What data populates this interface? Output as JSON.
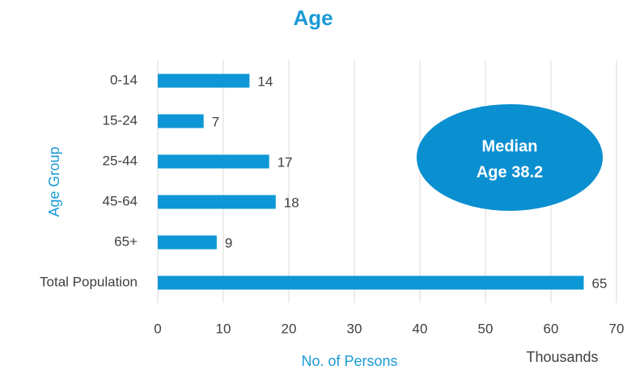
{
  "chart_data": {
    "type": "barh",
    "title": "Age",
    "categories": [
      "0-14",
      "15-24",
      "25-44",
      "45-64",
      "65+",
      "Total Population"
    ],
    "values": [
      14,
      7,
      17,
      18,
      9,
      65
    ],
    "color": "#0e97d6",
    "xlim": [
      0,
      70
    ],
    "xticks": [
      0,
      10,
      20,
      30,
      40,
      50,
      60,
      70
    ],
    "grid": true,
    "x_label": "No. of Persons",
    "x_unit": "Thousands",
    "y_label": "Age Group",
    "annotation": {
      "lines": [
        "Median",
        "Age 38.2"
      ],
      "color": "#0a8fd0"
    }
  }
}
